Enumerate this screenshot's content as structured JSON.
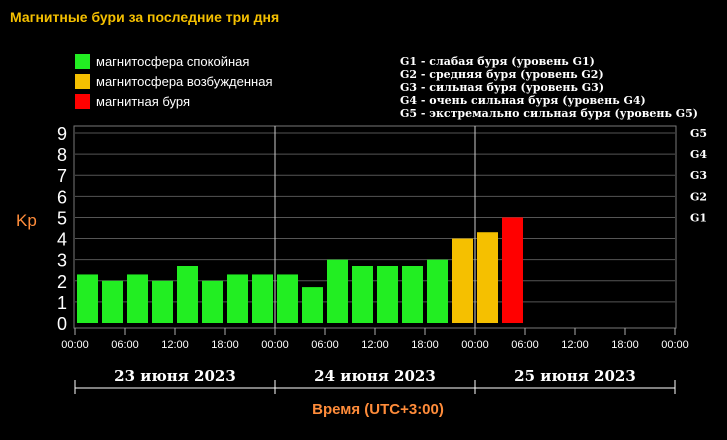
{
  "header": {
    "title": "Магнитные бури за последние три дня"
  },
  "legend": {
    "items": [
      {
        "label": "магнитосфера спокойная",
        "color": "#22ee22"
      },
      {
        "label": "магнитосфера возбужденная",
        "color": "#f5c000"
      },
      {
        "label": "магнитная буря",
        "color": "#ff0000"
      }
    ]
  },
  "storm_legend": [
    "G1 - слабая буря (уровень G1)",
    "G2 - средняя буря (уровень G2)",
    "G3 - сильная буря (уровень G3)",
    "G4 - очень сильная буря (уровень G4)",
    "G5 - экстремально сильная буря (уровень G5)"
  ],
  "chart_data": {
    "type": "bar",
    "ylabel": "Kp",
    "xlabel": "Время (UTC+3:00)",
    "ylim": [
      0,
      9
    ],
    "y_ticks": [
      "0",
      "1",
      "2",
      "3",
      "4",
      "5",
      "6",
      "7",
      "8",
      "9"
    ],
    "g_levels": [
      {
        "label": "G1",
        "kp": 5
      },
      {
        "label": "G2",
        "kp": 6
      },
      {
        "label": "G3",
        "kp": 7
      },
      {
        "label": "G4",
        "kp": 8
      },
      {
        "label": "G5",
        "kp": 9
      }
    ],
    "x_tick_labels": [
      "00:00",
      "06:00",
      "12:00",
      "18:00",
      "00:00",
      "06:00",
      "12:00",
      "18:00",
      "00:00",
      "06:00",
      "12:00",
      "18:00",
      "00:00"
    ],
    "days": [
      "23 июня 2023",
      "24 июня 2023",
      "25 июня 2023"
    ],
    "slots_per_day": 8,
    "values": [
      2.3,
      2.0,
      2.3,
      2.0,
      2.7,
      2.0,
      2.3,
      2.3,
      2.3,
      1.7,
      3.0,
      2.7,
      2.7,
      2.7,
      3.0,
      4.0,
      4.3,
      5.0
    ],
    "colors": {
      "quiet": "#22ee22",
      "active": "#f5c000",
      "storm": "#ff0000",
      "axis_label": "#ff8c3a",
      "grid": "#555555"
    }
  }
}
